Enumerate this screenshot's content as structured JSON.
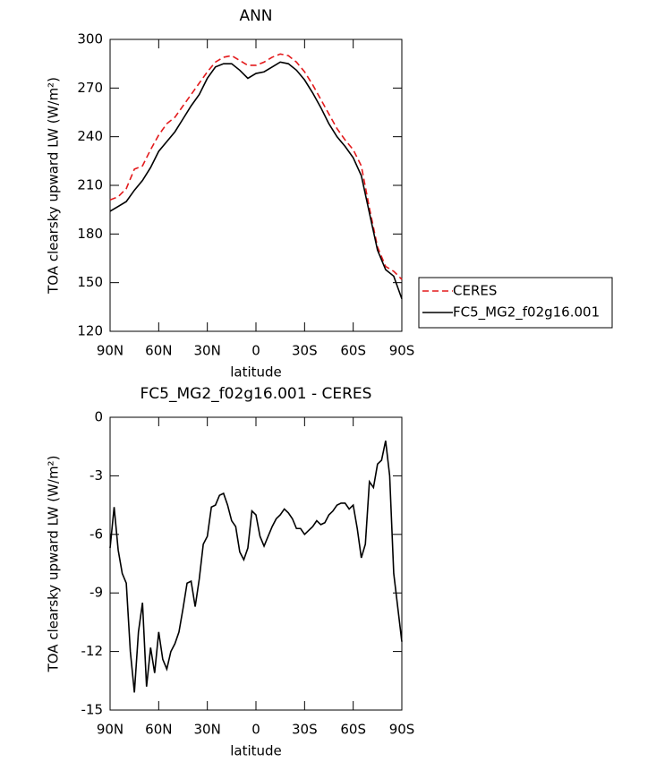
{
  "chart_data": [
    {
      "type": "line",
      "title": "ANN",
      "xlabel": "latitude",
      "ylabel": "TOA clearsky upward LW (W/m²)",
      "x": [
        90,
        85,
        80,
        75,
        70,
        65,
        60,
        55,
        50,
        45,
        40,
        35,
        30,
        25,
        20,
        15,
        10,
        5,
        0,
        -5,
        -10,
        -15,
        -20,
        -25,
        -30,
        -35,
        -40,
        -45,
        -50,
        -55,
        -60,
        -65,
        -70,
        -75,
        -80,
        -85,
        -90
      ],
      "series": [
        {
          "name": "CERES",
          "color": "#e31a1c",
          "dashed": true,
          "values": [
            201,
            203,
            208,
            220,
            222,
            232,
            241,
            248,
            252,
            259,
            266,
            273,
            280,
            286,
            289,
            290,
            287,
            284,
            284,
            286,
            289,
            291,
            290,
            286,
            280,
            272,
            263,
            254,
            245,
            238,
            232,
            222,
            196,
            172,
            160,
            157,
            152
          ]
        },
        {
          "name": "FC5_MG2_f02g16.001",
          "color": "#000000",
          "dashed": false,
          "values": [
            194,
            197,
            200,
            207,
            213,
            221,
            231,
            237,
            243,
            251,
            259,
            266,
            276,
            283,
            285,
            285,
            281,
            276,
            279,
            280,
            283,
            286,
            285,
            281,
            275,
            267,
            258,
            248,
            240,
            234,
            227,
            216,
            193,
            170,
            158,
            154,
            140
          ]
        }
      ],
      "xlim": [
        90,
        -90
      ],
      "xticks": [
        {
          "value": 90,
          "label": "90N"
        },
        {
          "value": 60,
          "label": "60N"
        },
        {
          "value": 30,
          "label": "30N"
        },
        0,
        {
          "value": -30,
          "label": "30S"
        },
        {
          "value": -60,
          "label": "60S"
        },
        {
          "value": -90,
          "label": "90S"
        }
      ],
      "ylim": [
        120,
        300
      ],
      "yticks": [
        120,
        150,
        180,
        210,
        240,
        270,
        300
      ],
      "legend": "right"
    },
    {
      "type": "line",
      "title": "FC5_MG2_f02g16.001 - CERES",
      "xlabel": "latitude",
      "ylabel": "TOA clearsky upward LW (W/m²)",
      "x": [
        90,
        87.5,
        85,
        82.5,
        80,
        77.5,
        75,
        72.5,
        70,
        67.5,
        65,
        62.5,
        60,
        57.5,
        55,
        52.5,
        50,
        47.5,
        45,
        42.5,
        40,
        37.5,
        35,
        32.5,
        30,
        27.5,
        25,
        22.5,
        20,
        17.5,
        15,
        12.5,
        10,
        7.5,
        5,
        2.5,
        0,
        -2.5,
        -5,
        -7.5,
        -10,
        -12.5,
        -15,
        -17.5,
        -20,
        -22.5,
        -25,
        -27.5,
        -30,
        -32.5,
        -35,
        -37.5,
        -40,
        -42.5,
        -45,
        -47.5,
        -50,
        -52.5,
        -55,
        -57.5,
        -60,
        -62.5,
        -65,
        -67.5,
        -70,
        -72.5,
        -75,
        -77.5,
        -80,
        -82.5,
        -85,
        -90
      ],
      "values": [
        -6.7,
        -4.6,
        -6.8,
        -8.0,
        -8.5,
        -12.0,
        -14.1,
        -11.0,
        -9.5,
        -13.8,
        -11.8,
        -13.1,
        -11.0,
        -12.4,
        -12.9,
        -12.0,
        -11.6,
        -11.0,
        -9.8,
        -8.5,
        -8.4,
        -9.7,
        -8.3,
        -6.5,
        -6.1,
        -4.6,
        -4.5,
        -4.0,
        -3.9,
        -4.5,
        -5.3,
        -5.6,
        -6.9,
        -7.3,
        -6.7,
        -4.8,
        -5.0,
        -6.1,
        -6.6,
        -6.1,
        -5.6,
        -5.2,
        -5.0,
        -4.7,
        -4.9,
        -5.2,
        -5.7,
        -5.7,
        -6.0,
        -5.8,
        -5.6,
        -5.3,
        -5.5,
        -5.4,
        -5.0,
        -4.8,
        -4.5,
        -4.4,
        -4.4,
        -4.7,
        -4.5,
        -5.7,
        -7.2,
        -6.5,
        -3.3,
        -3.6,
        -2.4,
        -2.2,
        -1.2,
        -3.0,
        -8.0,
        -11.5
      ],
      "color": "#000000",
      "xlim": [
        90,
        -90
      ],
      "xticks": [
        {
          "value": 90,
          "label": "90N"
        },
        {
          "value": 60,
          "label": "60N"
        },
        {
          "value": 30,
          "label": "30N"
        },
        0,
        {
          "value": -30,
          "label": "30S"
        },
        {
          "value": -60,
          "label": "60S"
        },
        {
          "value": -90,
          "label": "90S"
        }
      ],
      "ylim": [
        -15,
        0
      ],
      "yticks": [
        -15,
        -12,
        -9,
        -6,
        -3,
        0
      ]
    }
  ]
}
